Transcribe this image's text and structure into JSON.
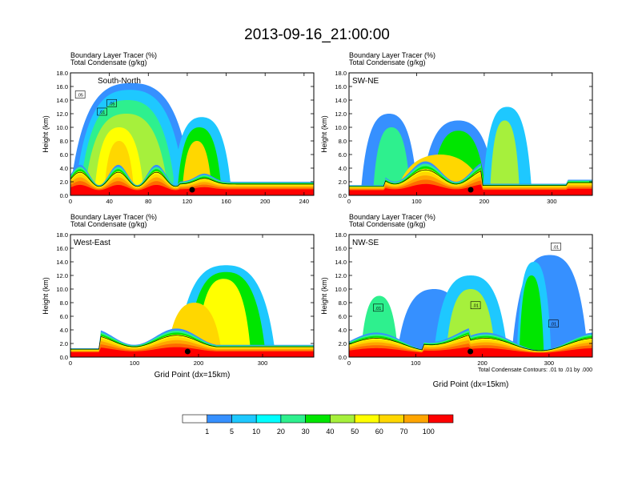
{
  "title": "2013-09-16_21:00:00",
  "footnote": "Total Condensate Contours: .01 to .01 by .000",
  "colorbar": {
    "levels": [
      "1",
      "5",
      "10",
      "20",
      "30",
      "40",
      "50",
      "60",
      "70",
      "100"
    ],
    "colors": [
      "#ffffff",
      "#3690ff",
      "#1ec8ff",
      "#00ffff",
      "#2ef08e",
      "#00e600",
      "#a6f03c",
      "#ffff00",
      "#ffd700",
      "#ffa500",
      "#ff6a00",
      "#ff0000"
    ]
  },
  "chart_data": [
    {
      "type": "heatmap",
      "panel": "South-North",
      "subtitle_line1": "Boundary Layer Tracer   (%)",
      "subtitle_line2": "Total Condensate   (g/kg)",
      "xlabel": "",
      "ylabel": "Height (km)",
      "xlim": [
        0,
        250
      ],
      "ylim": [
        0,
        18
      ],
      "xticks": [
        "0",
        "40",
        "80",
        "120",
        "160",
        "200",
        "240"
      ],
      "yticks": [
        "0.0",
        "2.0",
        "4.0",
        "6.0",
        "8.0",
        "10.0",
        "12.0",
        "14.0",
        "16.0",
        "18.0"
      ],
      "contour_labels": [
        ".05",
        ".01",
        ".05"
      ],
      "marker_x": 125
    },
    {
      "type": "heatmap",
      "panel": "SW-NE",
      "subtitle_line1": "Boundary Layer Tracer   (%)",
      "subtitle_line2": "Total Condensate   (g/kg)",
      "xlabel": "",
      "ylabel": "Height (km)",
      "xlim": [
        0,
        360
      ],
      "ylim": [
        0,
        18
      ],
      "xticks": [
        "0",
        "100",
        "200",
        "300"
      ],
      "yticks": [
        "0.0",
        "2.0",
        "4.0",
        "6.0",
        "8.0",
        "10.0",
        "12.0",
        "14.0",
        "16.0",
        "18.0"
      ],
      "contour_labels": [],
      "marker_x": 180
    },
    {
      "type": "heatmap",
      "panel": "West-East",
      "subtitle_line1": "Boundary Layer Tracer   (%)",
      "subtitle_line2": "Total Condensate   (g/kg)",
      "xlabel": "Grid Point (dx=15km)",
      "ylabel": "Height (km)",
      "xlim": [
        0,
        380
      ],
      "ylim": [
        0,
        18
      ],
      "xticks": [
        "0",
        "100",
        "200",
        "300"
      ],
      "yticks": [
        "0.0",
        "2.0",
        "4.0",
        "6.0",
        "8.0",
        "10.0",
        "12.0",
        "14.0",
        "16.0",
        "18.0"
      ],
      "contour_labels": [],
      "marker_x": 183
    },
    {
      "type": "heatmap",
      "panel": "NW-SE",
      "subtitle_line1": "Boundary Layer Tracer   (%)",
      "subtitle_line2": "Total Condensate   (g/kg)",
      "xlabel": "Grid Point (dx=15km)",
      "ylabel": "Height (km)",
      "xlim": [
        0,
        365
      ],
      "ylim": [
        0,
        18
      ],
      "xticks": [
        "0",
        "100",
        "200",
        "300"
      ],
      "yticks": [
        "0.0",
        "2.0",
        "4.0",
        "6.0",
        "8.0",
        "10.0",
        "12.0",
        "14.0",
        "16.0",
        "18.0"
      ],
      "contour_labels": [
        ".01",
        ".01",
        ".01",
        ".01"
      ],
      "marker_x": 182
    }
  ]
}
